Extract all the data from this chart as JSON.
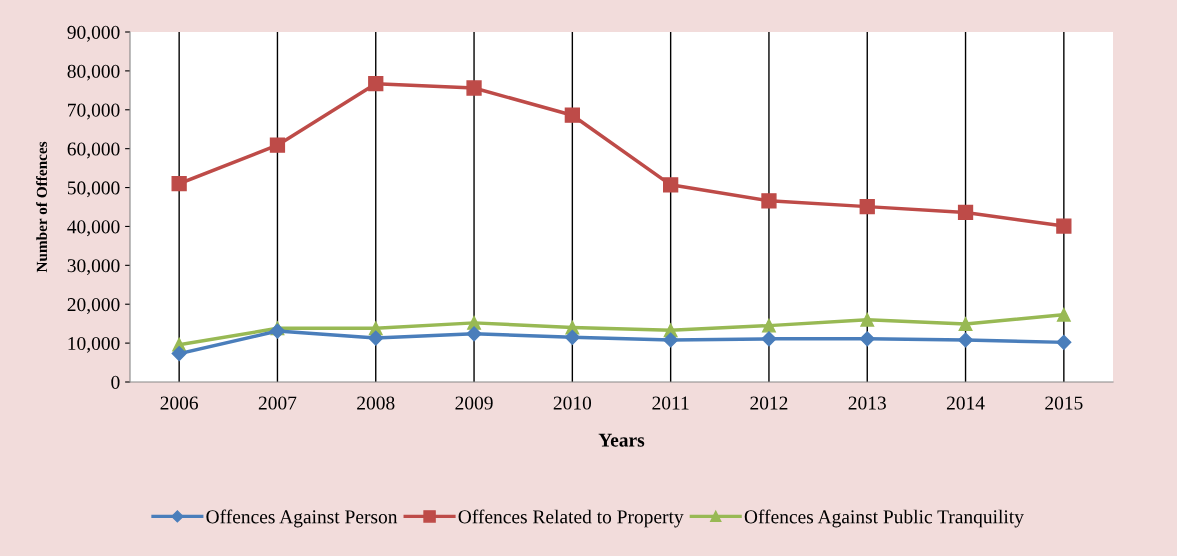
{
  "chart_data": {
    "type": "line",
    "xlabel": "Years",
    "ylabel": "Number of Offences",
    "categories": [
      "2006",
      "2007",
      "2008",
      "2009",
      "2010",
      "2011",
      "2012",
      "2013",
      "2014",
      "2015"
    ],
    "series": [
      {
        "name": "Offences Against Person",
        "color": "#4a7ebb",
        "marker": "diamond",
        "values": [
          7300,
          13100,
          11300,
          12400,
          11500,
          10800,
          11100,
          11100,
          10800,
          10200
        ]
      },
      {
        "name": "Offences Related to Property",
        "color": "#be4b48",
        "marker": "square",
        "values": [
          51000,
          60900,
          76700,
          75600,
          68600,
          50700,
          46600,
          45100,
          43600,
          40100
        ]
      },
      {
        "name": "Offences Against Public Tranquility",
        "color": "#98b954",
        "marker": "triangle",
        "values": [
          9600,
          13800,
          13800,
          15200,
          14000,
          13300,
          14500,
          16000,
          14900,
          17300
        ]
      }
    ],
    "ylim": [
      0,
      90000
    ],
    "yticks": [
      {
        "value": 0,
        "label": "0"
      },
      {
        "value": 10000,
        "label": "10,000"
      },
      {
        "value": 20000,
        "label": "20,000"
      },
      {
        "value": 30000,
        "label": "30,000"
      },
      {
        "value": 40000,
        "label": "40,000"
      },
      {
        "value": 50000,
        "label": "50,000"
      },
      {
        "value": 60000,
        "label": "60,000"
      },
      {
        "value": 70000,
        "label": "70,000"
      },
      {
        "value": 80000,
        "label": "80,000"
      },
      {
        "value": 90000,
        "label": "90,000"
      }
    ],
    "grid": "x",
    "legend": "bottom",
    "line_style": "solid"
  }
}
